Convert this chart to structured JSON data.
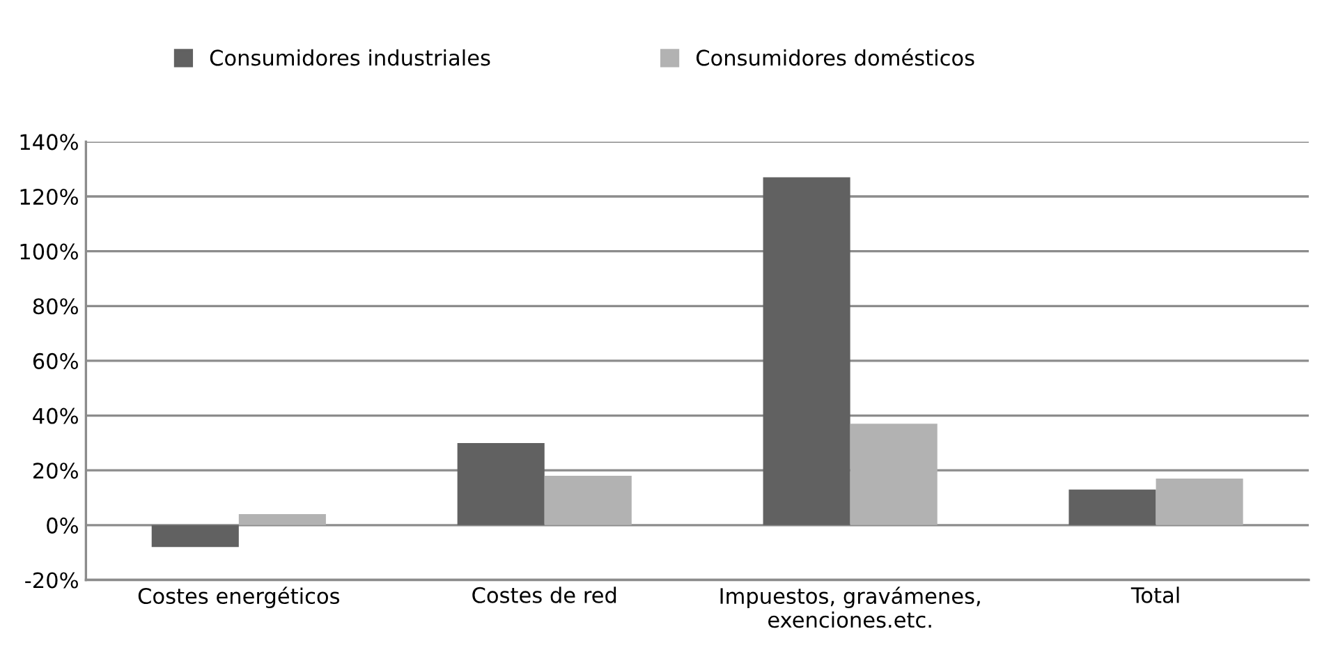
{
  "chart_data": {
    "type": "bar",
    "categories": [
      "Costes energéticos",
      "Costes de red",
      "Impuestos, gravámenes,\nexenciones.etc.",
      "Total"
    ],
    "series": [
      {
        "name": "Consumidores industriales",
        "color": "#616161",
        "values": [
          -8,
          30,
          127,
          13
        ]
      },
      {
        "name": "Consumidores domésticos",
        "color": "#b2b2b2",
        "values": [
          4,
          18,
          37,
          17
        ]
      }
    ],
    "ylim": [
      -20,
      140
    ],
    "yticks": [
      {
        "value": -20,
        "label": "-20%"
      },
      {
        "value": 0,
        "label": "0%"
      },
      {
        "value": 20,
        "label": "20%"
      },
      {
        "value": 40,
        "label": "40%"
      },
      {
        "value": 60,
        "label": "60%"
      },
      {
        "value": 80,
        "label": "80%"
      },
      {
        "value": 100,
        "label": "100%"
      },
      {
        "value": 120,
        "label": "120%"
      },
      {
        "value": 140,
        "label": "140%"
      }
    ],
    "grid": "y",
    "legend": "top"
  }
}
